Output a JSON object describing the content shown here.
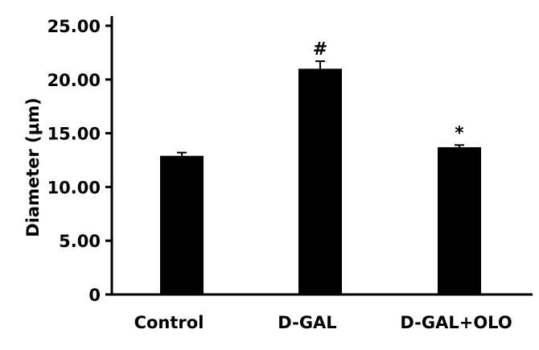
{
  "chart_data": {
    "type": "bar",
    "title": "",
    "xlabel": "",
    "ylabel": "Diameter (µm)",
    "ylim": [
      0,
      25
    ],
    "yticks": [
      0,
      5,
      10,
      15,
      20,
      25
    ],
    "ytick_labels": [
      "0",
      "5.00",
      "10.00",
      "15.00",
      "20.00",
      "25.00"
    ],
    "categories": [
      "Control",
      "D-GAL",
      "D-GAL+OLO"
    ],
    "values": [
      12.9,
      21.0,
      13.7
    ],
    "errors": [
      0.3,
      0.7,
      0.2
    ],
    "annotations": [
      "",
      "#",
      "*"
    ],
    "bar_color": "#000000",
    "grid": false,
    "legend": "none"
  }
}
